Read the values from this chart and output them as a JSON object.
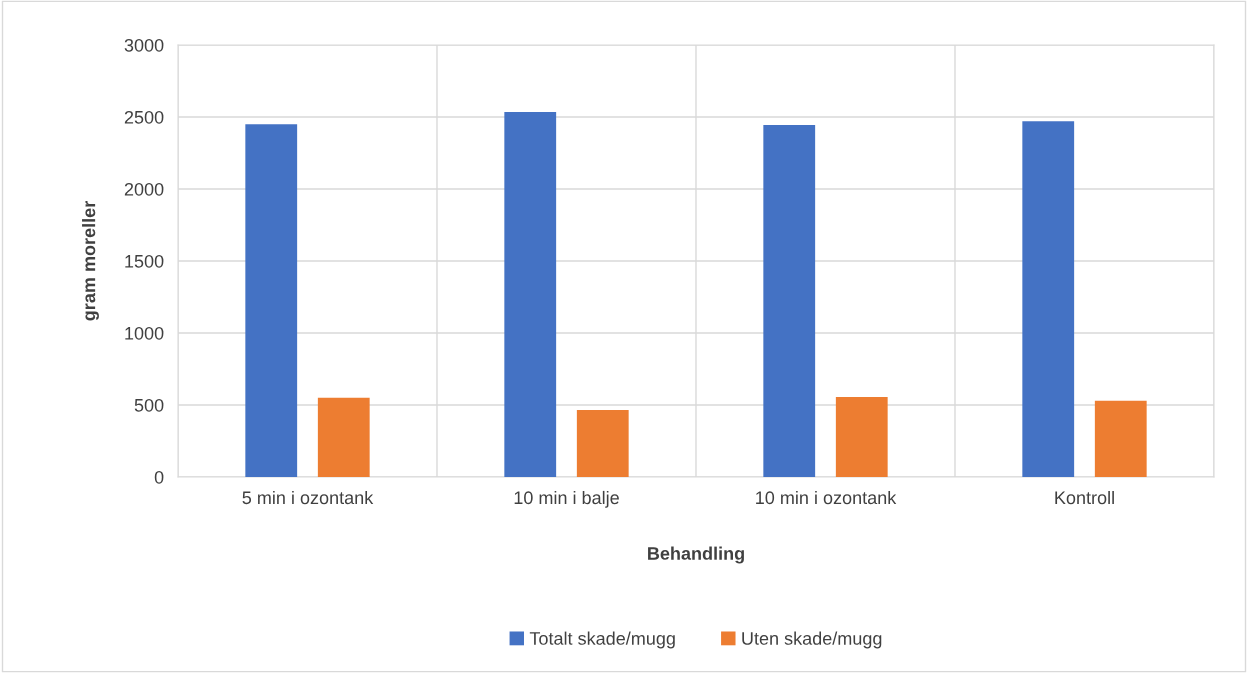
{
  "chart_data": {
    "type": "bar",
    "xlabel": "Behandling",
    "ylabel": "gram moreller",
    "categories": [
      "5 min i ozontank",
      "10 min i balje",
      "10 min i ozontank",
      "Kontroll"
    ],
    "series": [
      {
        "name": "Totalt skade/mugg",
        "color": "#4472c4",
        "values": [
          2450,
          2535,
          2445,
          2470
        ]
      },
      {
        "name": "Uten skade/mugg",
        "color": "#ed7d31",
        "values": [
          550,
          465,
          555,
          530
        ]
      }
    ],
    "ylim": [
      0,
      3000
    ],
    "yticks": [
      0,
      500,
      1000,
      1500,
      2000,
      2500,
      3000
    ],
    "grid": true,
    "legend": "bottom"
  }
}
